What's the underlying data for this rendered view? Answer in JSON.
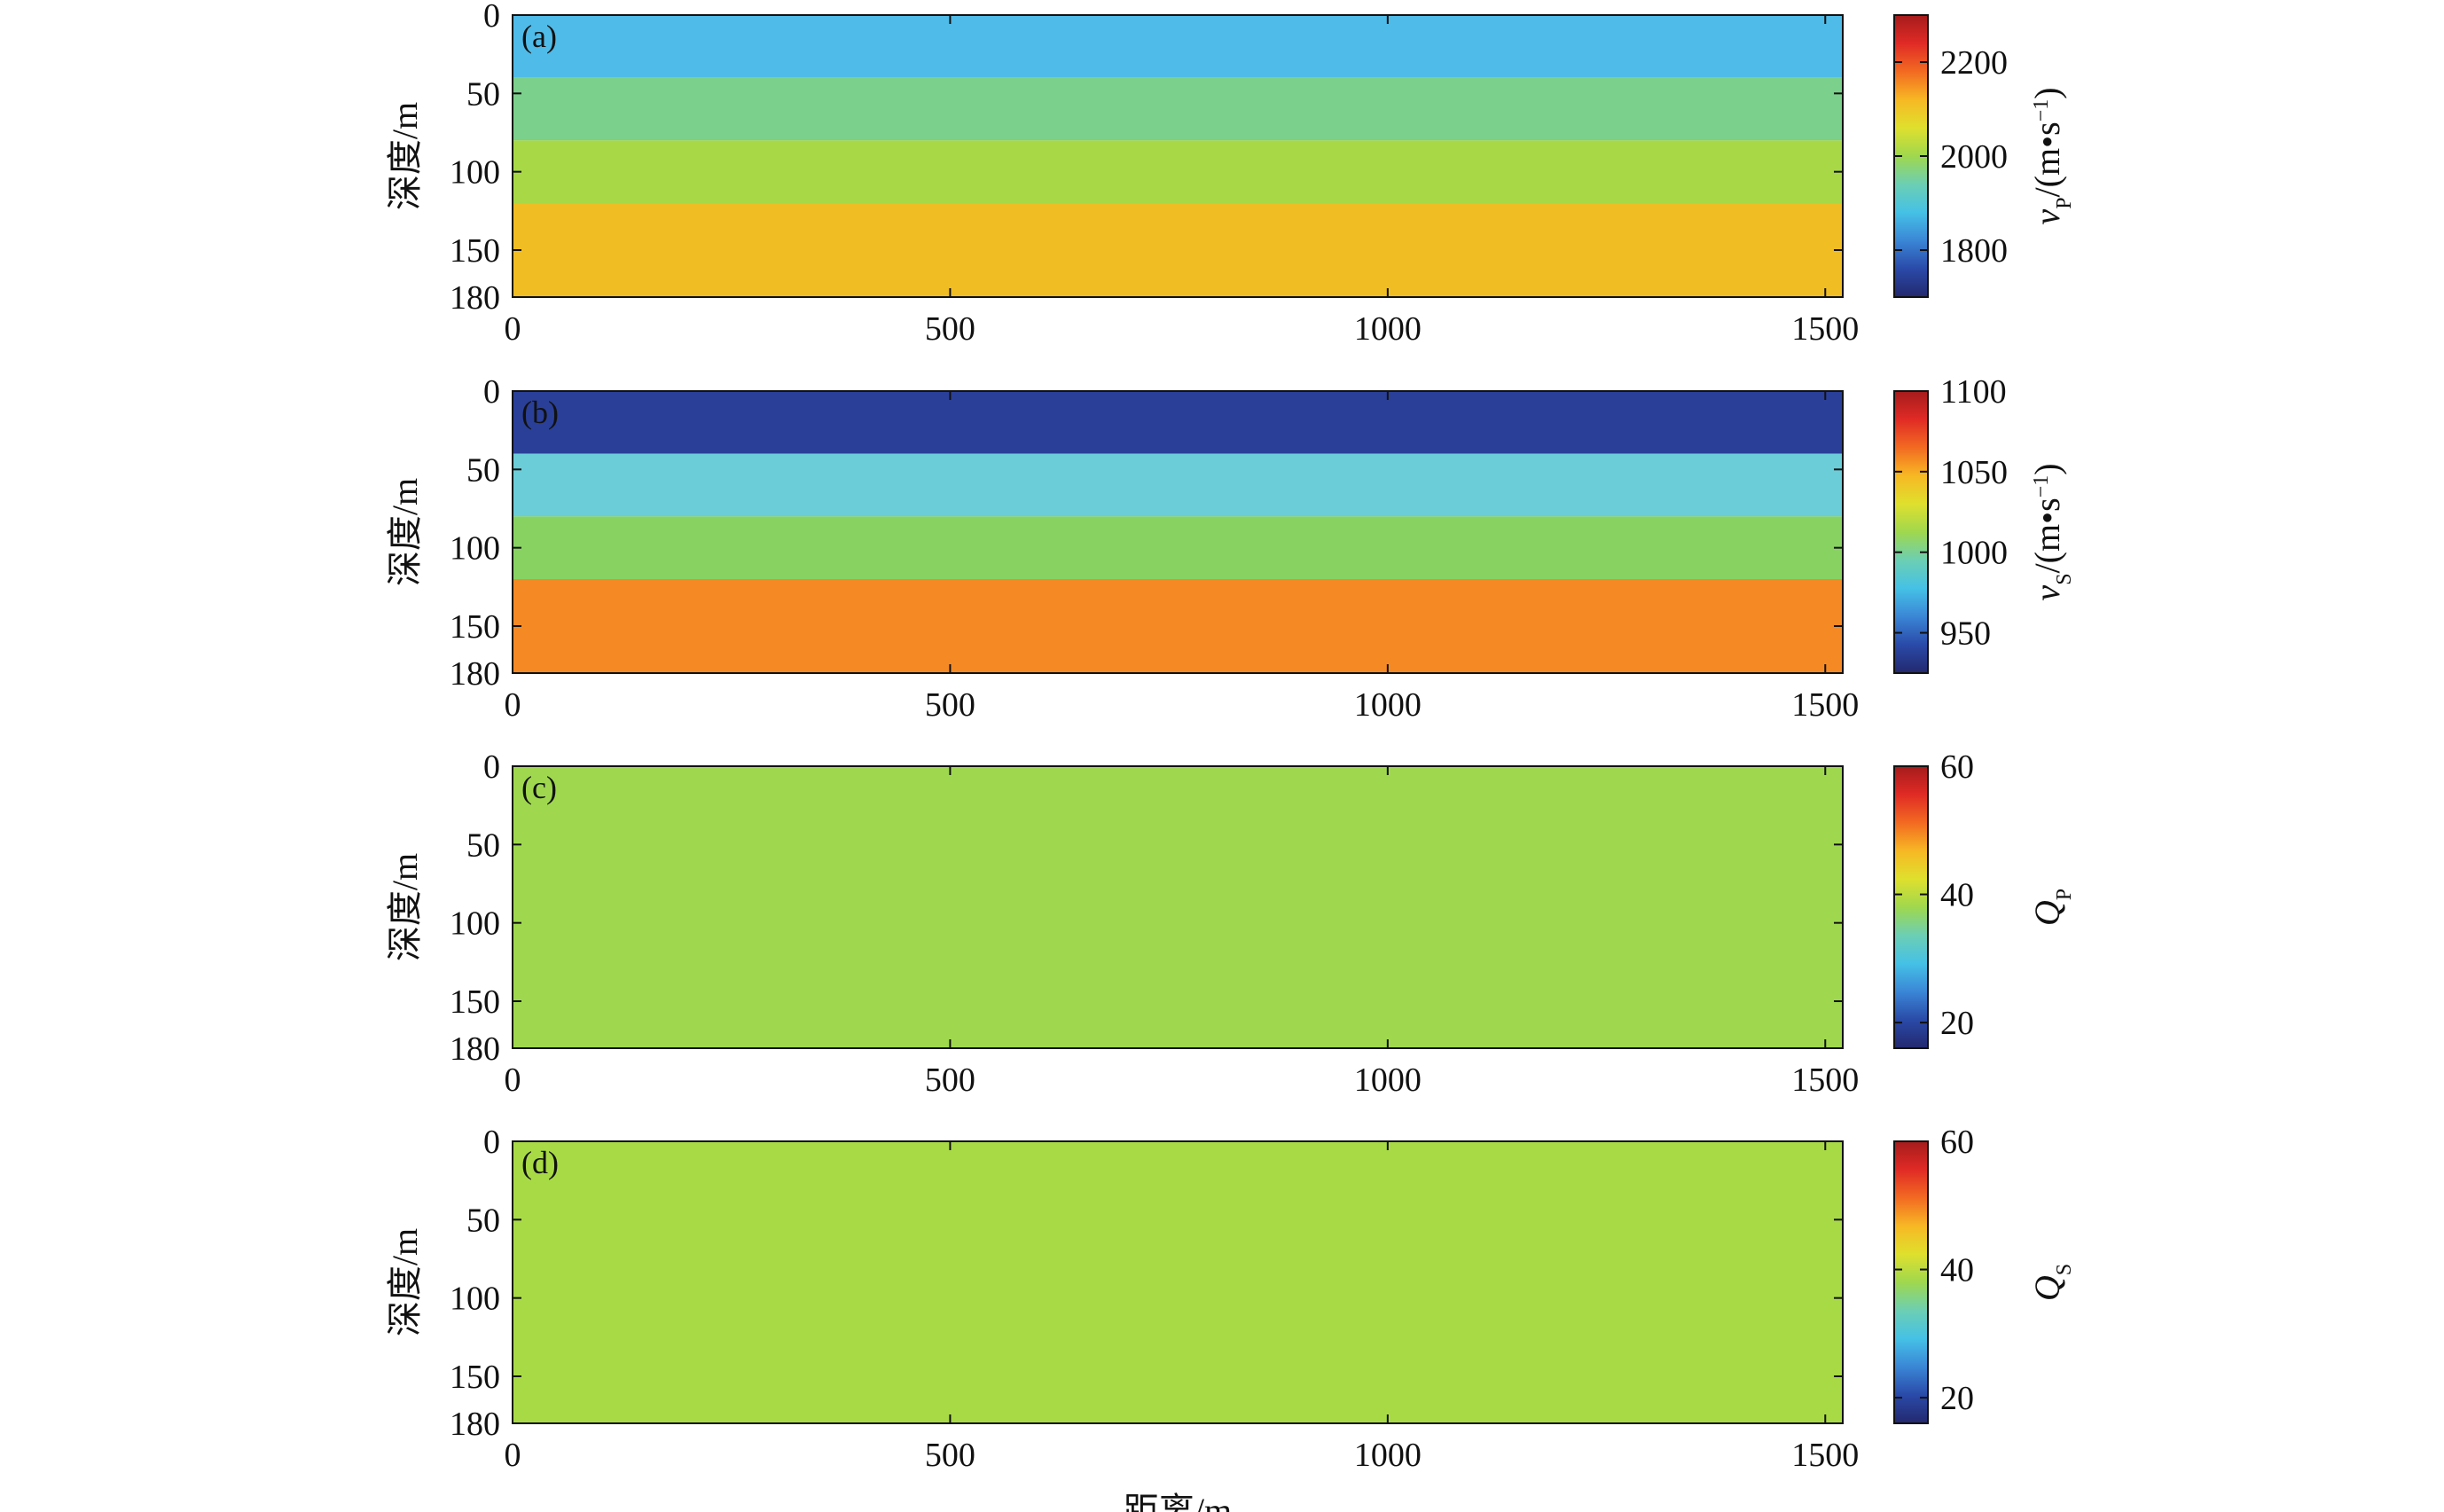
{
  "chart_data": [
    {
      "type": "heatmap",
      "panel_label": "(a)",
      "ylabel": "深度/m",
      "xlabel": "",
      "xticks": [
        0,
        500,
        1000,
        1500
      ],
      "yticks": [
        0,
        50,
        100,
        150,
        180
      ],
      "xlim": [
        0,
        1520
      ],
      "ylim": [
        0,
        180
      ],
      "colorbar": {
        "label_main": "v",
        "label_sub": "P",
        "label_unit": "/(m•s",
        "label_sup": "−1",
        "label_end": ")",
        "ticks": [
          1800,
          2000,
          2200
        ],
        "range": [
          1700,
          2300
        ]
      },
      "layers": [
        {
          "top": 0,
          "bottom": 40,
          "value": 1870,
          "color": "#4fbbe8"
        },
        {
          "top": 40,
          "bottom": 80,
          "value": 1960,
          "color": "#7bd08b"
        },
        {
          "top": 80,
          "bottom": 120,
          "value": 2050,
          "color": "#a8d845"
        },
        {
          "top": 120,
          "bottom": 180,
          "value": 2150,
          "color": "#f0bd22"
        }
      ]
    },
    {
      "type": "heatmap",
      "panel_label": "(b)",
      "ylabel": "深度/m",
      "xlabel": "",
      "xticks": [
        0,
        500,
        1000,
        1500
      ],
      "yticks": [
        0,
        50,
        100,
        150,
        180
      ],
      "xlim": [
        0,
        1520
      ],
      "ylim": [
        0,
        180
      ],
      "colorbar": {
        "label_main": "v",
        "label_sub": "S",
        "label_unit": "/(m•s",
        "label_sup": "−1",
        "label_end": ")",
        "ticks": [
          950,
          1000,
          1050,
          1100
        ],
        "range": [
          925,
          1100
        ]
      },
      "layers": [
        {
          "top": 0,
          "bottom": 40,
          "value": 935,
          "color": "#2a3f98"
        },
        {
          "top": 40,
          "bottom": 80,
          "value": 985,
          "color": "#6bcdd8"
        },
        {
          "top": 80,
          "bottom": 120,
          "value": 1015,
          "color": "#88d262"
        },
        {
          "top": 120,
          "bottom": 180,
          "value": 1065,
          "color": "#f58a25"
        }
      ]
    },
    {
      "type": "heatmap",
      "panel_label": "(c)",
      "ylabel": "深度/m",
      "xlabel": "",
      "xticks": [
        0,
        500,
        1000,
        1500
      ],
      "yticks": [
        0,
        50,
        100,
        150,
        180
      ],
      "xlim": [
        0,
        1520
      ],
      "ylim": [
        0,
        180
      ],
      "colorbar": {
        "label_main": "Q",
        "label_sub": "P",
        "label_unit": "",
        "label_sup": "",
        "label_end": "",
        "ticks": [
          20,
          40,
          60
        ],
        "range": [
          16,
          60
        ]
      },
      "layers": [
        {
          "top": 0,
          "bottom": 180,
          "value": 40,
          "color": "#9fd84e"
        }
      ]
    },
    {
      "type": "heatmap",
      "panel_label": "(d)",
      "ylabel": "深度/m",
      "xlabel": "距离/m",
      "xticks": [
        0,
        500,
        1000,
        1500
      ],
      "yticks": [
        0,
        50,
        100,
        150,
        180
      ],
      "xlim": [
        0,
        1520
      ],
      "ylim": [
        0,
        180
      ],
      "colorbar": {
        "label_main": "Q",
        "label_sub": "S",
        "label_unit": "",
        "label_sup": "",
        "label_end": "",
        "ticks": [
          20,
          40,
          60
        ],
        "range": [
          16,
          60
        ]
      },
      "layers": [
        {
          "top": 0,
          "bottom": 180,
          "value": 40,
          "color": "#a8da45"
        }
      ]
    }
  ],
  "colormap": [
    "#23286e",
    "#2a4aa8",
    "#3a86d6",
    "#45c1e6",
    "#6ccfb4",
    "#9fd84e",
    "#dfe02d",
    "#f7b824",
    "#f26a21",
    "#e02a25",
    "#a51c1c"
  ]
}
